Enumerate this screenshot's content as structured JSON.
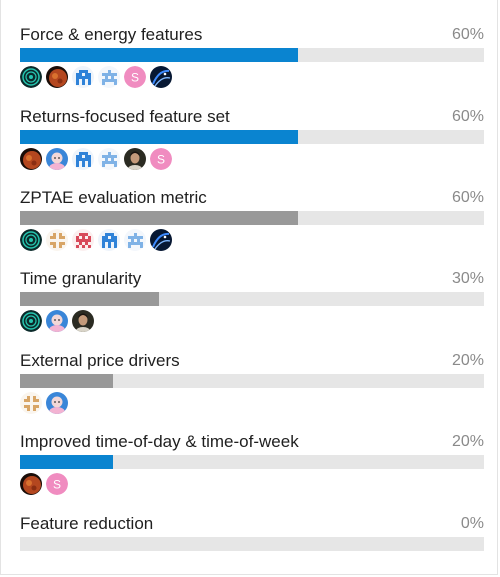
{
  "poll": {
    "options": [
      {
        "label": "Force & energy features",
        "percent_text": "60%",
        "fraction": 0.6,
        "bar_color": "#0a84d0",
        "voters": [
          "target-avatar",
          "moon-avatar",
          "pixel-blue-avatar",
          "pixel-blue-light-avatar",
          "letter-s-avatar",
          "galaxy-avatar"
        ]
      },
      {
        "label": "Returns-focused feature set",
        "percent_text": "60%",
        "fraction": 0.6,
        "bar_color": "#0a84d0",
        "voters": [
          "moon-avatar",
          "cartoon-avatar",
          "pixel-blue-avatar",
          "pixel-blue-light-avatar",
          "photo-person-avatar",
          "letter-s-avatar"
        ]
      },
      {
        "label": "ZPTAE evaluation metric",
        "percent_text": "60%",
        "fraction": 0.6,
        "bar_color": "#999999",
        "voters": [
          "target-avatar",
          "pixel-tan-avatar",
          "pixel-red-avatar",
          "pixel-blue-avatar",
          "pixel-blue-light-avatar",
          "galaxy-avatar"
        ]
      },
      {
        "label": "Time granularity",
        "percent_text": "30%",
        "fraction": 0.3,
        "bar_color": "#999999",
        "voters": [
          "target-avatar",
          "cartoon-avatar",
          "photo-person-avatar"
        ]
      },
      {
        "label": "External price drivers",
        "percent_text": "20%",
        "fraction": 0.2,
        "bar_color": "#999999",
        "voters": [
          "pixel-tan-avatar",
          "cartoon-avatar"
        ]
      },
      {
        "label": "Improved time-of-day & time-of-week",
        "percent_text": "20%",
        "fraction": 0.2,
        "bar_color": "#0a84d0",
        "voters": [
          "moon-avatar",
          "letter-s-avatar"
        ]
      },
      {
        "label": "Feature reduction",
        "percent_text": "0%",
        "fraction": 0.0,
        "bar_color": "#999999",
        "voters": []
      }
    ],
    "avatar_letter": "S"
  }
}
